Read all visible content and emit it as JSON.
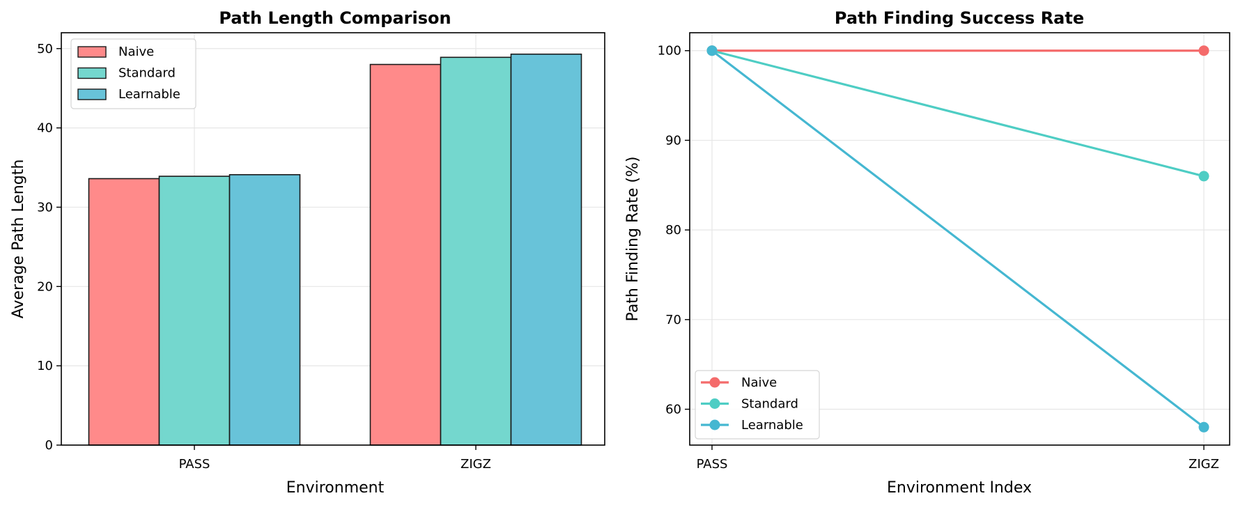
{
  "chart_data": [
    {
      "type": "bar",
      "title": "Path Length Comparison",
      "xlabel": "Environment",
      "ylabel": "Average Path Length",
      "categories": [
        "PASS",
        "ZIGZ"
      ],
      "ylim": [
        0,
        52
      ],
      "yticks": [
        0,
        10,
        20,
        30,
        40,
        50
      ],
      "grid": true,
      "legend": "top-left",
      "series": [
        {
          "name": "Naive",
          "color": "#FF8A8A",
          "values": [
            33.6,
            48.0
          ]
        },
        {
          "name": "Standard",
          "color": "#74D7CE",
          "values": [
            33.9,
            48.9
          ]
        },
        {
          "name": "Learnable",
          "color": "#68C3D9",
          "values": [
            34.1,
            49.3
          ]
        }
      ]
    },
    {
      "type": "line",
      "title": "Path Finding Success Rate",
      "xlabel": "Environment Index",
      "ylabel": "Path Finding Rate (%)",
      "categories": [
        "PASS",
        "ZIGZ"
      ],
      "ylim": [
        56,
        102
      ],
      "yticks": [
        60,
        70,
        80,
        90,
        100
      ],
      "grid": true,
      "legend": "bottom-left",
      "series": [
        {
          "name": "Naive",
          "color": "#F46B6B",
          "values": [
            100,
            100
          ]
        },
        {
          "name": "Standard",
          "color": "#4ECDC4",
          "values": [
            100,
            86
          ]
        },
        {
          "name": "Learnable",
          "color": "#45B7D1",
          "values": [
            100,
            58
          ]
        }
      ]
    }
  ]
}
